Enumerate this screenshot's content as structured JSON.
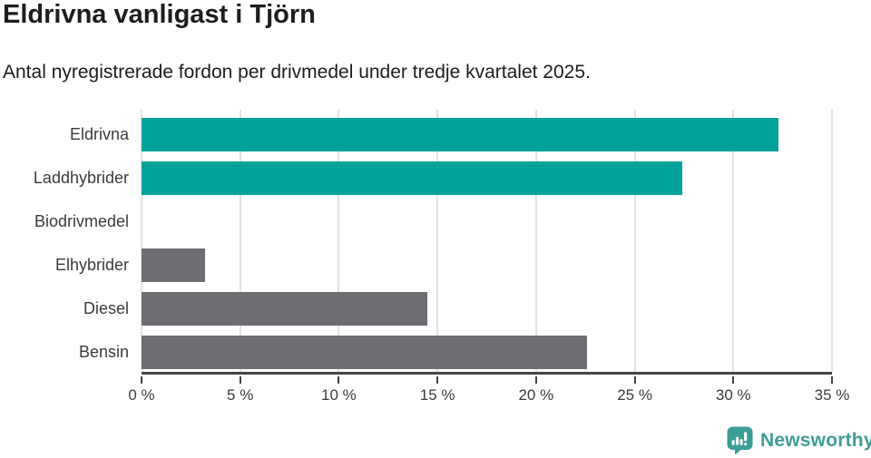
{
  "header": {
    "title": "Eldrivna vanligast i Tjörn",
    "subtitle": "Antal nyregistrerade fordon per drivmedel under tredje kvartalet 2025."
  },
  "chart_data": {
    "type": "bar",
    "orientation": "horizontal",
    "title": "Eldrivna vanligast i Tjörn",
    "categories": [
      "Eldrivna",
      "Laddhybrider",
      "Biodrivmedel",
      "Elhybrider",
      "Diesel",
      "Bensin"
    ],
    "values": [
      32.3,
      27.4,
      0,
      3.2,
      14.5,
      22.6
    ],
    "bar_colors": [
      "#00a29a",
      "#00a29a",
      "#00a29a",
      "#6d6d72",
      "#6d6d72",
      "#6d6d72"
    ],
    "unit": "%",
    "xlabel": "",
    "ylabel": "",
    "xlim": [
      0,
      35
    ],
    "x_ticks": [
      0,
      5,
      10,
      15,
      20,
      25,
      30,
      35
    ],
    "x_tick_labels": [
      "0 %",
      "5 %",
      "10 %",
      "15 %",
      "20 %",
      "25 %",
      "30 %",
      "35 %"
    ],
    "grid": true,
    "legend": false
  },
  "footer": {
    "brand": "Newsworthy",
    "logo_icon": "newsworthy-speech-bubble-bar-chart-icon"
  },
  "colors": {
    "bar_teal": "#00a29a",
    "bar_gray": "#6d6d72",
    "grid_line": "#e2e2e2",
    "axis_line": "#454545",
    "title_text": "#1d1d1b",
    "label_text": "#3b3b3b",
    "brand_teal": "#3f9e97"
  }
}
